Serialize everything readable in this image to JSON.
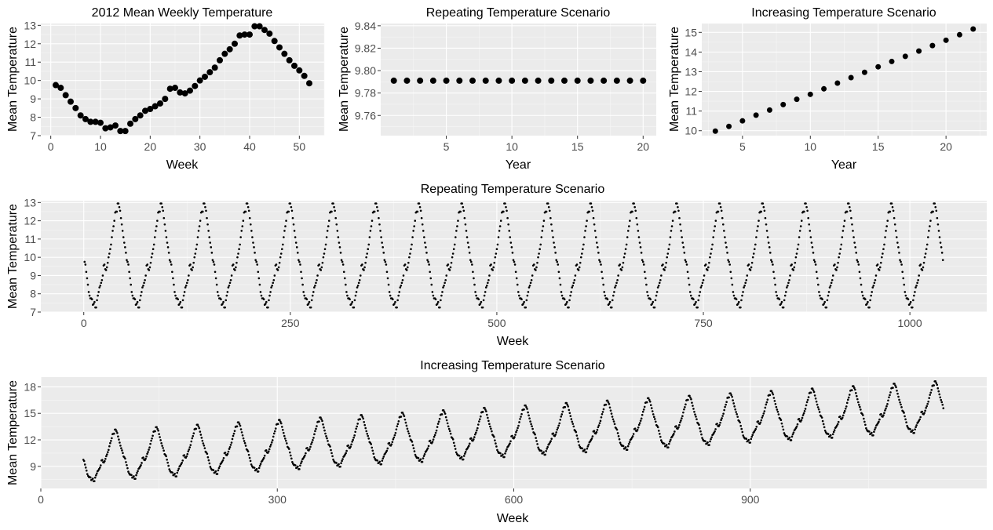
{
  "chart_data": [
    {
      "id": "p1",
      "type": "scatter",
      "title": "2012 Mean Weekly Temperature",
      "xlabel": "Week",
      "ylabel": "Mean Temperature",
      "xlim": [
        -2,
        55
      ],
      "ylim": [
        7,
        13.1
      ],
      "xticks": [
        0,
        10,
        20,
        30,
        40,
        50
      ],
      "yticks": [
        7,
        8,
        9,
        10,
        11,
        12,
        13
      ],
      "x": [
        1,
        2,
        3,
        4,
        5,
        6,
        7,
        8,
        9,
        10,
        11,
        12,
        13,
        14,
        15,
        16,
        17,
        18,
        19,
        20,
        21,
        22,
        23,
        24,
        25,
        26,
        27,
        28,
        29,
        30,
        31,
        32,
        33,
        34,
        35,
        36,
        37,
        38,
        39,
        40,
        41,
        42,
        43,
        44,
        45,
        46,
        47,
        48,
        49,
        50,
        51,
        52
      ],
      "y": [
        9.75,
        9.6,
        9.2,
        8.85,
        8.5,
        8.1,
        7.9,
        7.75,
        7.75,
        7.7,
        7.4,
        7.45,
        7.55,
        7.25,
        7.25,
        7.65,
        7.9,
        8.1,
        8.35,
        8.45,
        8.6,
        8.75,
        9.0,
        9.55,
        9.6,
        9.35,
        9.3,
        9.45,
        9.7,
        10.0,
        10.2,
        10.45,
        10.7,
        11.1,
        11.45,
        11.7,
        12.0,
        12.45,
        12.5,
        12.5,
        12.95,
        12.95,
        12.75,
        12.55,
        12.15,
        11.8,
        11.45,
        11.1,
        10.8,
        10.55,
        10.25,
        9.85
      ]
    },
    {
      "id": "p2",
      "type": "scatter",
      "title": "Repeating Temperature Scenario",
      "xlabel": "Year",
      "ylabel": "Mean Temperature",
      "xlim": [
        0,
        21
      ],
      "ylim": [
        9.742,
        9.842
      ],
      "xticks": [
        5,
        10,
        15,
        20
      ],
      "yticks": [
        9.76,
        9.78,
        9.8,
        9.82,
        9.84
      ],
      "ytick_labels": [
        "9.76",
        "9.78",
        "9.80",
        "9.82",
        "9.84"
      ],
      "x": [
        1,
        2,
        3,
        4,
        5,
        6,
        7,
        8,
        9,
        10,
        11,
        12,
        13,
        14,
        15,
        16,
        17,
        18,
        19,
        20
      ],
      "y": [
        9.791,
        9.791,
        9.791,
        9.791,
        9.791,
        9.791,
        9.791,
        9.791,
        9.791,
        9.791,
        9.791,
        9.791,
        9.791,
        9.791,
        9.791,
        9.791,
        9.791,
        9.791,
        9.791,
        9.791
      ]
    },
    {
      "id": "p3",
      "type": "scatter",
      "title": "Increasing Temperature Scenario",
      "xlabel": "Year",
      "ylabel": "Mean Temperature",
      "xlim": [
        2,
        23
      ],
      "ylim": [
        9.75,
        15.45
      ],
      "xticks": [
        5,
        10,
        15,
        20
      ],
      "yticks": [
        10,
        11,
        12,
        13,
        14,
        15
      ],
      "x": [
        3,
        4,
        5,
        6,
        7,
        8,
        9,
        10,
        11,
        12,
        13,
        14,
        15,
        16,
        17,
        18,
        19,
        20,
        21,
        22
      ],
      "y": [
        9.98,
        10.22,
        10.5,
        10.79,
        11.05,
        11.33,
        11.6,
        11.85,
        12.13,
        12.42,
        12.7,
        12.97,
        13.25,
        13.52,
        13.78,
        14.05,
        14.33,
        14.6,
        14.88,
        15.17
      ]
    },
    {
      "id": "p4",
      "type": "scatter",
      "title": "Repeating Temperature Scenario",
      "xlabel": "Week",
      "ylabel": "Mean Temperature",
      "xlim": [
        -52,
        1093
      ],
      "ylim": [
        7,
        13.1
      ],
      "xticks": [
        0,
        250,
        500,
        750,
        1000
      ],
      "yticks": [
        7,
        8,
        9,
        10,
        11,
        12,
        13
      ],
      "cycles": 20,
      "weeks_per_cycle": 52,
      "pattern": "repeats the 2012 weekly series"
    },
    {
      "id": "p5",
      "type": "scatter",
      "title": "Increasing Temperature Scenario",
      "xlabel": "Week",
      "ylabel": "Mean Temperature",
      "xlim": [
        0,
        1200
      ],
      "ylim": [
        6.5,
        19.1
      ],
      "xticks": [
        0,
        300,
        600,
        900
      ],
      "yticks": [
        9,
        12,
        15,
        18
      ],
      "x_start": 54,
      "cycles": 21,
      "weeks_per_cycle": 52,
      "trend_per_cycle": 0.273,
      "pattern": "2012 weekly series plus linear trend"
    }
  ]
}
